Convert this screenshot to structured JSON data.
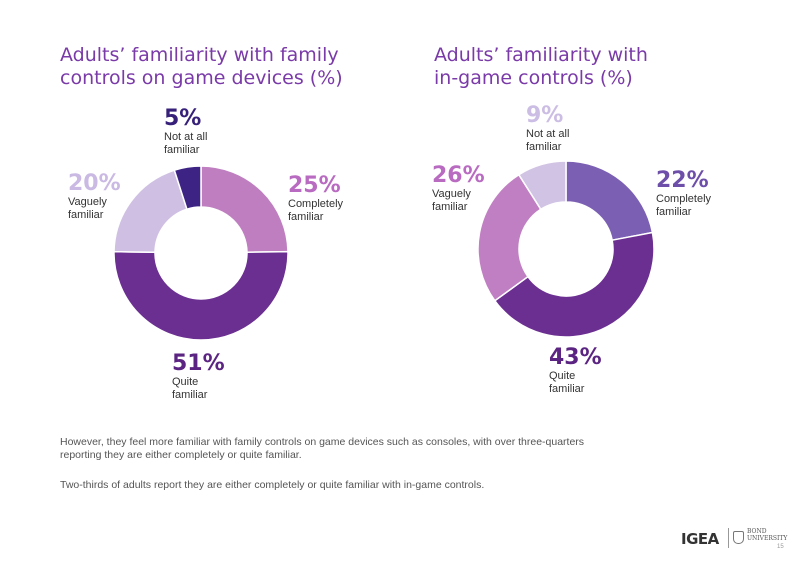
{
  "chart_data": [
    {
      "type": "pie",
      "title": "Adults’ familiarity with family\ncontrols on game devices (%)",
      "categories": [
        "Completely familiar",
        "Quite familiar",
        "Vaguely familiar",
        "Not at all familiar"
      ],
      "values": [
        25,
        51,
        20,
        5
      ],
      "labels": [
        {
          "pct": "25%",
          "cat": "Completely\nfamiliar"
        },
        {
          "pct": "51%",
          "cat": "Quite\nfamiliar"
        },
        {
          "pct": "20%",
          "cat": "Vaguely\nfamiliar"
        },
        {
          "pct": "5%",
          "cat": "Not at all\nfamiliar"
        }
      ],
      "colors": [
        "#bf7ec0",
        "#6b2e91",
        "#cfc0e3",
        "#3d2384"
      ],
      "label_colors": [
        "#b86bc0",
        "#5b2482",
        "#c9b9e3",
        "#36207a"
      ]
    },
    {
      "type": "pie",
      "title": "Adults’ familiarity with\nin-game controls (%)",
      "categories": [
        "Completely familiar",
        "Quite familiar",
        "Vaguely familiar",
        "Not at all familiar"
      ],
      "values": [
        22,
        43,
        26,
        9
      ],
      "labels": [
        {
          "pct": "22%",
          "cat": "Completely\nfamiliar"
        },
        {
          "pct": "43%",
          "cat": "Quite\nfamiliar"
        },
        {
          "pct": "26%",
          "cat": "Vaguely\nfamiliar"
        },
        {
          "pct": "9%",
          "cat": "Not at all\nfamiliar"
        }
      ],
      "colors": [
        "#7b5fb3",
        "#6b2e91",
        "#c07fc2",
        "#d0c3e3"
      ],
      "label_colors": [
        "#6d4faa",
        "#5b2482",
        "#b86bc0",
        "#cbbde3"
      ]
    }
  ],
  "text": {
    "para1": "However, they feel more familiar with family controls on game devices such as consoles, with over three-quarters reporting they are either completely or quite familiar.",
    "para2": "Two-thirds of adults report they are either completely or quite familiar with in-game controls."
  },
  "footer": {
    "logo_igea": "IGEA",
    "logo_bond": "BOND\nUNIVERSITY",
    "page_number": "15"
  }
}
